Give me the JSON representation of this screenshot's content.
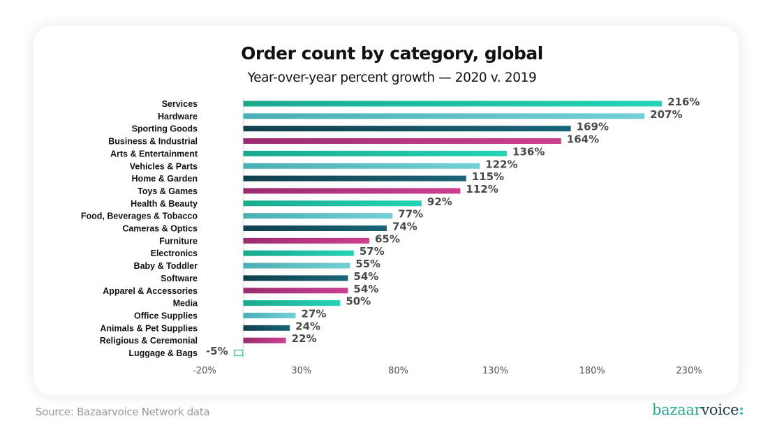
{
  "header": {
    "title": "Order count by category, global",
    "subtitle": "Year-over-year percent growth — 2020 v. 2019"
  },
  "footer": {
    "source": "Source: Bazaarvoice Network data",
    "logo_part1": "bazaar",
    "logo_part2": "voice",
    "logo_part3": ":"
  },
  "colors": {
    "green": "#22c9ad",
    "light_teal": "#6ccacf",
    "dark_teal": "#155a6b",
    "magenta": "#c43a8a",
    "outline": "#3fcbb7",
    "axis": "#e3e3e3"
  },
  "chart_data": {
    "type": "bar",
    "orientation": "horizontal",
    "title": "Order count by category, global",
    "subtitle": "Year-over-year percent growth — 2020 v. 2019",
    "xlabel": "",
    "ylabel": "",
    "xlim": [
      -20,
      230
    ],
    "xticks": [
      -20,
      30,
      80,
      130,
      180,
      230
    ],
    "xtick_labels": [
      "-20%",
      "30%",
      "80%",
      "130%",
      "180%",
      "230%"
    ],
    "grid": false,
    "legend": "none",
    "color_cycle": [
      "green",
      "light_teal",
      "dark_teal",
      "magenta"
    ],
    "categories": [
      "Services",
      "Hardware",
      "Sporting Goods",
      "Business & Industrial",
      "Arts & Entertainment",
      "Vehicles & Parts",
      "Home & Garden",
      "Toys & Games",
      "Health & Beauty",
      "Food, Beverages & Tobacco",
      "Cameras & Optics",
      "Furniture",
      "Electronics",
      "Baby & Toddler",
      "Software",
      "Apparel & Accessories",
      "Media",
      "Office Supplies",
      "Animals & Pet Supplies",
      "Religious & Ceremonial",
      "Luggage & Bags"
    ],
    "values": [
      216,
      207,
      169,
      164,
      136,
      122,
      115,
      112,
      92,
      77,
      74,
      65,
      57,
      55,
      54,
      54,
      50,
      27,
      24,
      22,
      -5
    ],
    "value_labels": [
      "216%",
      "207%",
      "169%",
      "164%",
      "136%",
      "122%",
      "115%",
      "112%",
      "92%",
      "77%",
      "74%",
      "65%",
      "57%",
      "55%",
      "54%",
      "54%",
      "50%",
      "27%",
      "24%",
      "22%",
      "-5%"
    ]
  }
}
